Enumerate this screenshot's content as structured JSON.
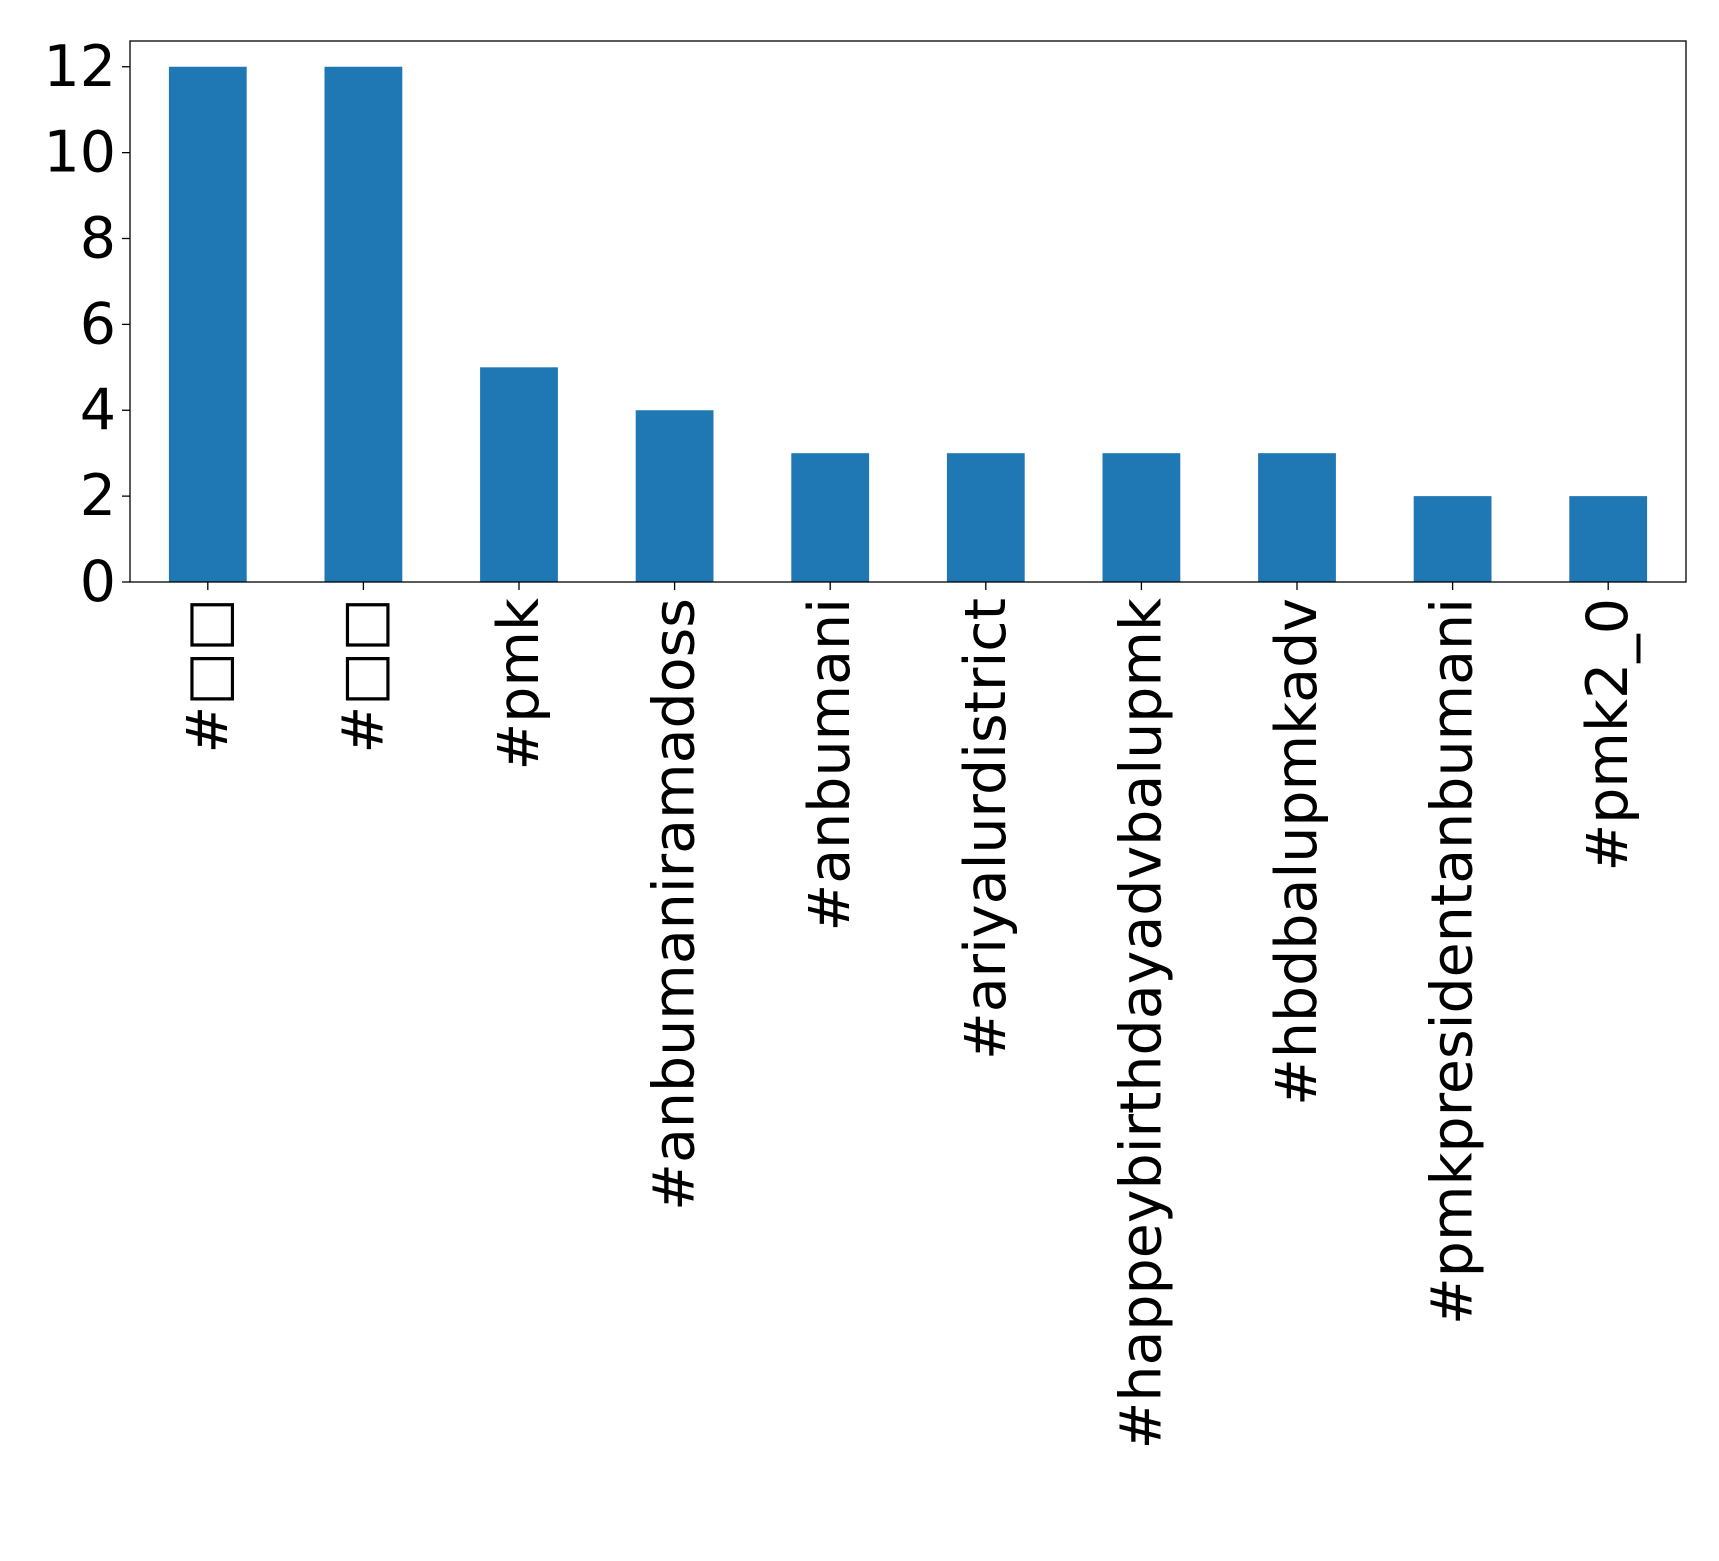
{
  "chart_data": {
    "type": "bar",
    "categories": [
      "#□□",
      "#□□",
      "#pmk",
      "#anbumaniramadoss",
      "#anbumani",
      "#ariyalurdistrict",
      "#happeybirthdayadvbalupmk",
      "#hbdbalupmkadv",
      "#pmkpresidentanbumani",
      "#pmk2_0"
    ],
    "values": [
      12,
      12,
      5,
      4,
      3,
      3,
      3,
      3,
      2,
      2
    ],
    "yticks": [
      0,
      2,
      4,
      6,
      8,
      10,
      12
    ],
    "ylim": [
      0,
      12.6
    ],
    "grid": false,
    "legend": "none",
    "bar_color": "#1f77b4"
  }
}
